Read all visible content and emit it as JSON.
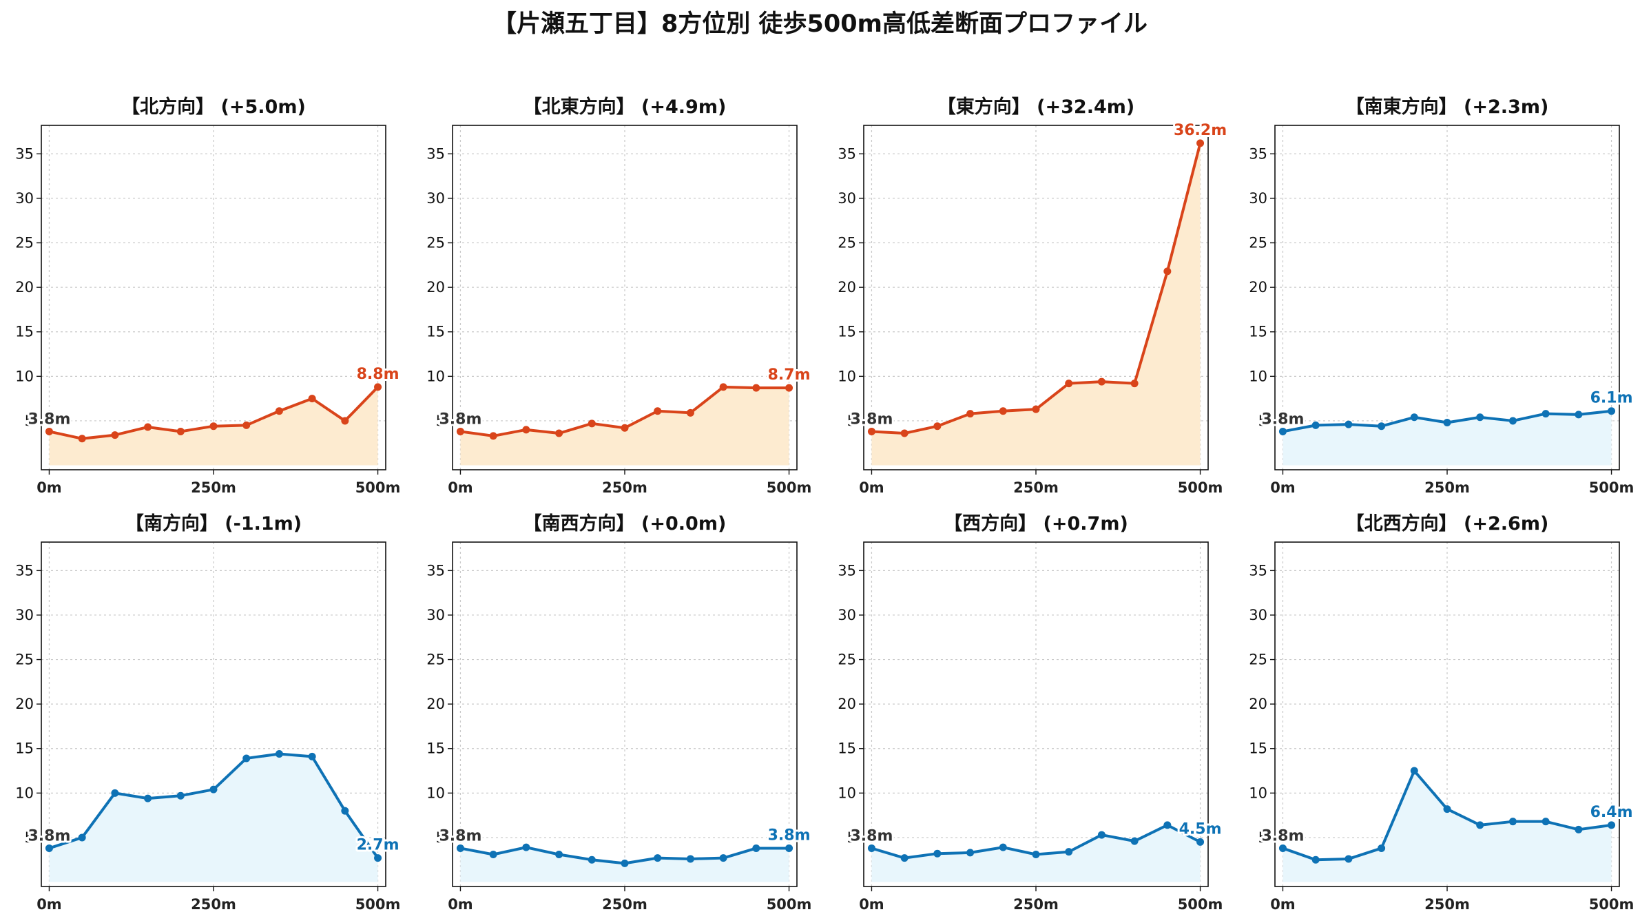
{
  "title": "【片瀬五丁目】8方位別 徒歩500m高低差断面プロファイル",
  "colors": {
    "up_line": "#d9441a",
    "up_fill": "#fdebd0",
    "down_line": "#0e72b5",
    "down_fill": "#e8f6fc",
    "start_label": "#333333",
    "grid": "#c8c8c8"
  },
  "chart_data": [
    {
      "type": "area",
      "title": "【北方向】 (+5.0m)",
      "trend": "up",
      "x": [
        0,
        50,
        100,
        150,
        200,
        250,
        300,
        350,
        400,
        450,
        500
      ],
      "y": [
        3.8,
        3.0,
        3.4,
        4.3,
        3.8,
        4.4,
        4.5,
        6.1,
        7.5,
        5.0,
        8.8
      ],
      "start_label": "3.8m",
      "end_label": "8.8m",
      "xticks": [
        "0m",
        "250m",
        "500m"
      ],
      "yticks": [
        "5",
        "10",
        "15",
        "20",
        "25",
        "30",
        "35"
      ],
      "xlim": [
        -12,
        512
      ],
      "ylim": [
        -0.5,
        38.2
      ],
      "grid": true
    },
    {
      "type": "area",
      "title": "【北東方向】 (+4.9m)",
      "trend": "up",
      "x": [
        0,
        50,
        100,
        150,
        200,
        250,
        300,
        350,
        400,
        450,
        500
      ],
      "y": [
        3.8,
        3.3,
        4.0,
        3.6,
        4.7,
        4.2,
        6.1,
        5.9,
        8.8,
        8.7,
        8.7
      ],
      "start_label": "3.8m",
      "end_label": "8.7m",
      "xticks": [
        "0m",
        "250m",
        "500m"
      ],
      "yticks": [
        "5",
        "10",
        "15",
        "20",
        "25",
        "30",
        "35"
      ],
      "xlim": [
        -12,
        512
      ],
      "ylim": [
        -0.5,
        38.2
      ],
      "grid": true
    },
    {
      "type": "area",
      "title": "【東方向】 (+32.4m)",
      "trend": "up",
      "x": [
        0,
        50,
        100,
        150,
        200,
        250,
        300,
        350,
        400,
        450,
        500
      ],
      "y": [
        3.8,
        3.6,
        4.4,
        5.8,
        6.1,
        6.3,
        9.2,
        9.4,
        9.2,
        21.8,
        36.2
      ],
      "start_label": "3.8m",
      "end_label": "36.2m",
      "xticks": [
        "0m",
        "250m",
        "500m"
      ],
      "yticks": [
        "5",
        "10",
        "15",
        "20",
        "25",
        "30",
        "35"
      ],
      "xlim": [
        -12,
        512
      ],
      "ylim": [
        -0.5,
        38.2
      ],
      "grid": true
    },
    {
      "type": "area",
      "title": "【南東方向】 (+2.3m)",
      "trend": "down",
      "x": [
        0,
        50,
        100,
        150,
        200,
        250,
        300,
        350,
        400,
        450,
        500
      ],
      "y": [
        3.8,
        4.5,
        4.6,
        4.4,
        5.4,
        4.8,
        5.4,
        5.0,
        5.8,
        5.7,
        6.1
      ],
      "start_label": "3.8m",
      "end_label": "6.1m",
      "xticks": [
        "0m",
        "250m",
        "500m"
      ],
      "yticks": [
        "5",
        "10",
        "15",
        "20",
        "25",
        "30",
        "35"
      ],
      "xlim": [
        -12,
        512
      ],
      "ylim": [
        -0.5,
        38.2
      ],
      "grid": true
    },
    {
      "type": "area",
      "title": "【南方向】 (-1.1m)",
      "trend": "down",
      "x": [
        0,
        50,
        100,
        150,
        200,
        250,
        300,
        350,
        400,
        450,
        500
      ],
      "y": [
        3.8,
        5.0,
        10.0,
        9.4,
        9.7,
        10.4,
        13.9,
        14.4,
        14.1,
        8.0,
        2.7
      ],
      "start_label": "3.8m",
      "end_label": "2.7m",
      "xticks": [
        "0m",
        "250m",
        "500m"
      ],
      "yticks": [
        "5",
        "10",
        "15",
        "20",
        "25",
        "30",
        "35"
      ],
      "xlim": [
        -12,
        512
      ],
      "ylim": [
        -0.5,
        38.2
      ],
      "grid": true
    },
    {
      "type": "area",
      "title": "【南西方向】 (+0.0m)",
      "trend": "down",
      "x": [
        0,
        50,
        100,
        150,
        200,
        250,
        300,
        350,
        400,
        450,
        500
      ],
      "y": [
        3.8,
        3.1,
        3.9,
        3.1,
        2.5,
        2.1,
        2.7,
        2.6,
        2.7,
        3.8,
        3.8
      ],
      "start_label": "3.8m",
      "end_label": "3.8m",
      "xticks": [
        "0m",
        "250m",
        "500m"
      ],
      "yticks": [
        "5",
        "10",
        "15",
        "20",
        "25",
        "30",
        "35"
      ],
      "xlim": [
        -12,
        512
      ],
      "ylim": [
        -0.5,
        38.2
      ],
      "grid": true
    },
    {
      "type": "area",
      "title": "【西方向】 (+0.7m)",
      "trend": "down",
      "x": [
        0,
        50,
        100,
        150,
        200,
        250,
        300,
        350,
        400,
        450,
        500
      ],
      "y": [
        3.8,
        2.7,
        3.2,
        3.3,
        3.9,
        3.1,
        3.4,
        5.3,
        4.6,
        6.4,
        4.5
      ],
      "start_label": "3.8m",
      "end_label": "4.5m",
      "xticks": [
        "0m",
        "250m",
        "500m"
      ],
      "yticks": [
        "5",
        "10",
        "15",
        "20",
        "25",
        "30",
        "35"
      ],
      "xlim": [
        -12,
        512
      ],
      "ylim": [
        -0.5,
        38.2
      ],
      "grid": true
    },
    {
      "type": "area",
      "title": "【北西方向】 (+2.6m)",
      "trend": "down",
      "x": [
        0,
        50,
        100,
        150,
        200,
        250,
        300,
        350,
        400,
        450,
        500
      ],
      "y": [
        3.8,
        2.5,
        2.6,
        3.8,
        12.5,
        8.2,
        6.4,
        6.8,
        6.8,
        5.9,
        6.4
      ],
      "start_label": "3.8m",
      "end_label": "6.4m",
      "xticks": [
        "0m",
        "250m",
        "500m"
      ],
      "yticks": [
        "5",
        "10",
        "15",
        "20",
        "25",
        "30",
        "35"
      ],
      "xlim": [
        -12,
        512
      ],
      "ylim": [
        -0.5,
        38.2
      ],
      "grid": true
    }
  ]
}
